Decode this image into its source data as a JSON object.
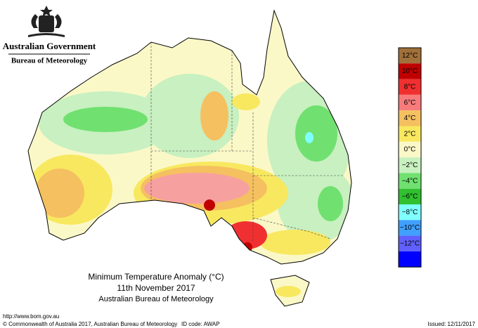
{
  "header": {
    "government": "Australian Government",
    "bureau": "Bureau of Meteorology"
  },
  "legend": {
    "labels": [
      "12°C",
      "10°C",
      "8°C",
      "6°C",
      "4°C",
      "2°C",
      "0°C",
      "−2°C",
      "−4°C",
      "−6°C",
      "−8°C",
      "−10°C",
      "−12°C"
    ]
  },
  "caption": {
    "title": "Minimum Temperature Anomaly (°C)",
    "date": "11th November 2017",
    "source": "Australian Bureau of Meteorology"
  },
  "footer": {
    "url": "http://www.bom.gov.au",
    "copyright": "© Commonwealth of Australia 2017, Australian Bureau of Meteorology",
    "id_code": "ID code: AWAP",
    "issued": "Issued: 12/11/2017"
  }
}
